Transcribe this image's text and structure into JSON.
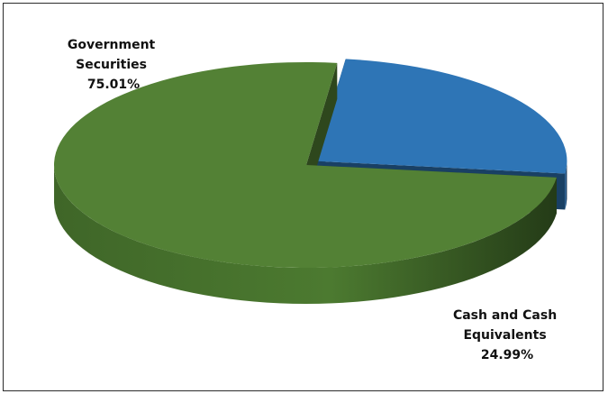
{
  "chart_data": {
    "type": "pie",
    "style": "3d-exploded",
    "title": "",
    "legend": "none",
    "slices": [
      {
        "name": "Government Securities",
        "label_lines": [
          "Government",
          "Securities"
        ],
        "value": 75.01,
        "value_label": "75.01%",
        "color": "#538135"
      },
      {
        "name": "Cash and Cash Equivalents",
        "label_lines": [
          "Cash and Cash",
          "Equivalents"
        ],
        "value": 24.99,
        "value_label": "24.99%",
        "color": "#2e75b6"
      }
    ]
  }
}
